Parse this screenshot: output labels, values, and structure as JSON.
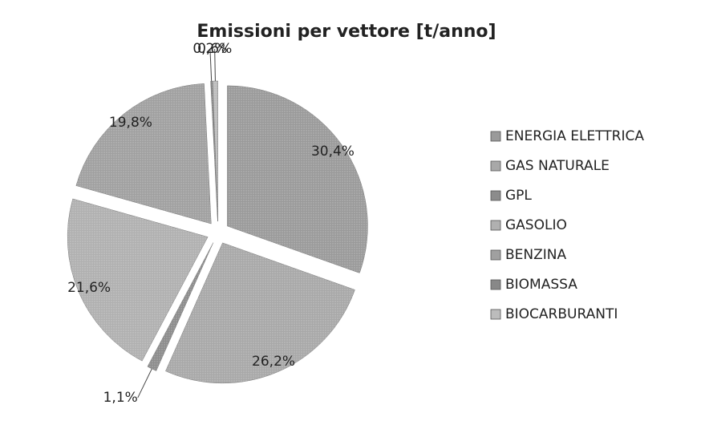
{
  "chart_data": {
    "type": "pie",
    "title": "Emissioni per vettore [t/anno]",
    "categories": [
      "ENERGIA ELETTRICA",
      "GAS NATURALE",
      "GPL",
      "GASOLIO",
      "BENZINA",
      "BIOMASSA",
      "BIOCARBURANTI"
    ],
    "values": [
      30.4,
      26.2,
      1.1,
      21.6,
      19.8,
      0.2,
      0.6
    ],
    "value_labels": [
      "30,4%",
      "26,2%",
      "1,1%",
      "21,6%",
      "19,8%",
      "0,2%",
      "0,6%"
    ],
    "colors": [
      "#9a9a9a",
      "#a8a8a8",
      "#8c8c8c",
      "#b0b0b0",
      "#a0a0a0",
      "#888888",
      "#bcbcbc"
    ],
    "legend": "right"
  }
}
